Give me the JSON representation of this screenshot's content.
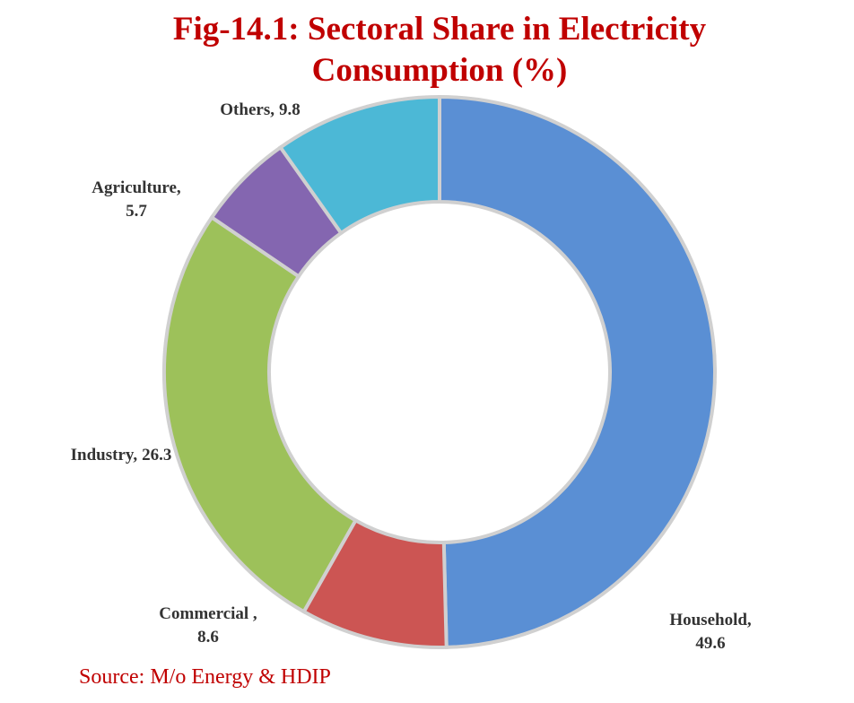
{
  "chart_data": {
    "type": "pie",
    "title": "Fig-14.1: Sectoral Share in Electricity Consumption (%)",
    "categories": [
      "Household,",
      "Commercial ,",
      "Industry,",
      "Agriculture,",
      "Others,"
    ],
    "values": [
      49.6,
      8.6,
      26.3,
      5.7,
      9.8
    ],
    "colors": [
      "#5a8fd4",
      "#cc5553",
      "#9dc15a",
      "#8466b0",
      "#4cb8d6"
    ],
    "source": "Source: M/o Energy & HDIP"
  }
}
